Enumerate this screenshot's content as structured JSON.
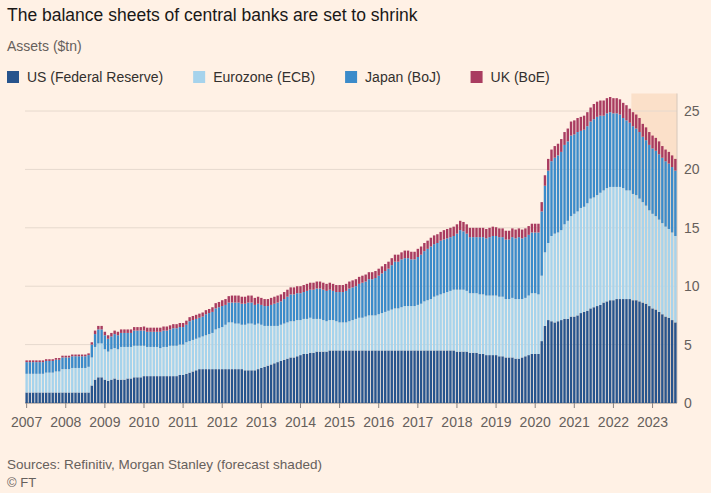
{
  "chart_data": {
    "type": "bar",
    "stacked": true,
    "grid": true,
    "legend": "top",
    "title": "The balance sheets of central banks are set to shrink",
    "subtitle": "Assets ($tn)",
    "source": "Sources: Refinitiv, Morgan Stanley (forecast shaded)",
    "credit": "© FT",
    "forecast_start": 186,
    "ylim": [
      0,
      26.5
    ],
    "yticks": [
      0,
      5,
      10,
      15,
      20,
      25
    ],
    "categories": [
      "2007",
      null,
      null,
      null,
      null,
      null,
      null,
      null,
      null,
      null,
      null,
      null,
      "2008",
      null,
      null,
      null,
      null,
      null,
      null,
      null,
      null,
      null,
      null,
      null,
      "2009",
      null,
      null,
      null,
      null,
      null,
      null,
      null,
      null,
      null,
      null,
      null,
      "2010",
      null,
      null,
      null,
      null,
      null,
      null,
      null,
      null,
      null,
      null,
      null,
      "2011",
      null,
      null,
      null,
      null,
      null,
      null,
      null,
      null,
      null,
      null,
      null,
      "2012",
      null,
      null,
      null,
      null,
      null,
      null,
      null,
      null,
      null,
      null,
      null,
      "2013",
      null,
      null,
      null,
      null,
      null,
      null,
      null,
      null,
      null,
      null,
      null,
      "2014",
      null,
      null,
      null,
      null,
      null,
      null,
      null,
      null,
      null,
      null,
      null,
      "2015",
      null,
      null,
      null,
      null,
      null,
      null,
      null,
      null,
      null,
      null,
      null,
      "2016",
      null,
      null,
      null,
      null,
      null,
      null,
      null,
      null,
      null,
      null,
      null,
      "2017",
      null,
      null,
      null,
      null,
      null,
      null,
      null,
      null,
      null,
      null,
      null,
      "2018",
      null,
      null,
      null,
      null,
      null,
      null,
      null,
      null,
      null,
      null,
      null,
      "2019",
      null,
      null,
      null,
      null,
      null,
      null,
      null,
      null,
      null,
      null,
      null,
      "2020",
      null,
      null,
      null,
      null,
      null,
      null,
      null,
      null,
      null,
      null,
      null,
      "2021",
      null,
      null,
      null,
      null,
      null,
      null,
      null,
      null,
      null,
      null,
      null,
      "2022",
      null,
      null,
      null,
      null,
      null,
      null,
      null,
      null,
      null,
      null,
      null,
      "2023",
      null,
      null,
      null,
      null,
      null,
      null,
      null
    ],
    "series": [
      {
        "name": "US (Federal Reserve)",
        "color": "#27548d",
        "values": [
          0.9,
          0.9,
          0.9,
          0.9,
          0.9,
          0.9,
          0.9,
          0.9,
          0.9,
          0.9,
          0.9,
          0.9,
          0.9,
          0.9,
          0.9,
          0.9,
          0.9,
          0.9,
          0.9,
          0.9,
          1.5,
          2.0,
          2.2,
          2.2,
          2.0,
          1.9,
          2.0,
          2.1,
          2.0,
          2.0,
          2.0,
          2.1,
          2.1,
          2.2,
          2.2,
          2.2,
          2.3,
          2.3,
          2.3,
          2.3,
          2.3,
          2.3,
          2.3,
          2.3,
          2.3,
          2.3,
          2.3,
          2.4,
          2.4,
          2.5,
          2.6,
          2.7,
          2.8,
          2.9,
          2.9,
          2.9,
          2.9,
          2.9,
          2.9,
          2.9,
          2.9,
          2.9,
          2.9,
          2.9,
          2.9,
          2.9,
          2.9,
          2.8,
          2.8,
          2.8,
          2.8,
          2.9,
          3.0,
          3.1,
          3.2,
          3.3,
          3.4,
          3.5,
          3.6,
          3.7,
          3.8,
          3.9,
          3.9,
          4.0,
          4.1,
          4.2,
          4.2,
          4.3,
          4.3,
          4.4,
          4.4,
          4.4,
          4.4,
          4.5,
          4.5,
          4.5,
          4.5,
          4.5,
          4.5,
          4.5,
          4.5,
          4.5,
          4.5,
          4.5,
          4.5,
          4.5,
          4.5,
          4.5,
          4.5,
          4.5,
          4.5,
          4.5,
          4.5,
          4.5,
          4.5,
          4.5,
          4.5,
          4.5,
          4.5,
          4.5,
          4.5,
          4.5,
          4.5,
          4.5,
          4.5,
          4.5,
          4.5,
          4.5,
          4.5,
          4.5,
          4.5,
          4.5,
          4.4,
          4.4,
          4.4,
          4.4,
          4.3,
          4.3,
          4.3,
          4.2,
          4.2,
          4.1,
          4.1,
          4.1,
          4.1,
          4.0,
          4.0,
          3.9,
          3.9,
          3.9,
          3.8,
          3.8,
          3.9,
          4.0,
          4.1,
          4.2,
          4.2,
          4.2,
          5.3,
          6.6,
          7.1,
          7.0,
          6.9,
          7.0,
          7.1,
          7.2,
          7.2,
          7.4,
          7.4,
          7.5,
          7.7,
          7.8,
          7.9,
          8.1,
          8.2,
          8.3,
          8.4,
          8.6,
          8.7,
          8.8,
          8.8,
          8.9,
          8.9,
          8.9,
          8.9,
          8.9,
          8.8,
          8.8,
          8.7,
          8.6,
          8.5,
          8.3,
          8.1,
          8.0,
          7.8,
          7.6,
          7.4,
          7.3,
          7.1,
          6.9
        ]
      },
      {
        "name": "Eurozone (ECB)",
        "color": "#a6d3ec",
        "values": [
          1.6,
          1.6,
          1.6,
          1.6,
          1.6,
          1.6,
          1.7,
          1.7,
          1.7,
          1.8,
          1.8,
          2.0,
          2.0,
          2.0,
          2.1,
          2.1,
          2.1,
          2.1,
          2.1,
          2.2,
          2.4,
          2.8,
          2.9,
          2.9,
          2.6,
          2.5,
          2.6,
          2.6,
          2.6,
          2.8,
          2.8,
          2.7,
          2.7,
          2.7,
          2.7,
          2.7,
          2.6,
          2.5,
          2.5,
          2.5,
          2.5,
          2.4,
          2.5,
          2.5,
          2.6,
          2.6,
          2.6,
          2.6,
          2.6,
          2.7,
          2.7,
          2.7,
          2.7,
          2.7,
          2.8,
          2.9,
          3.0,
          3.1,
          3.4,
          3.5,
          3.6,
          3.8,
          4.0,
          4.0,
          3.9,
          3.9,
          3.8,
          3.9,
          4.0,
          4.0,
          3.9,
          3.9,
          3.7,
          3.5,
          3.4,
          3.3,
          3.2,
          3.1,
          3.1,
          3.1,
          3.1,
          3.1,
          3.1,
          3.1,
          3.0,
          3.0,
          3.0,
          3.0,
          2.9,
          2.8,
          2.8,
          2.7,
          2.6,
          2.6,
          2.6,
          2.5,
          2.4,
          2.4,
          2.4,
          2.5,
          2.6,
          2.7,
          2.8,
          2.8,
          2.9,
          3.0,
          3.0,
          3.0,
          3.1,
          3.2,
          3.3,
          3.4,
          3.5,
          3.6,
          3.6,
          3.7,
          3.8,
          3.8,
          3.8,
          3.8,
          3.9,
          4.0,
          4.2,
          4.3,
          4.4,
          4.6,
          4.7,
          4.8,
          4.9,
          5.0,
          5.1,
          5.2,
          5.3,
          5.3,
          5.3,
          5.2,
          5.1,
          5.1,
          5.1,
          5.1,
          5.1,
          5.1,
          5.1,
          5.1,
          5.1,
          5.1,
          5.1,
          5.0,
          5.0,
          5.1,
          5.1,
          5.1,
          5.0,
          5.0,
          5.1,
          5.2,
          5.2,
          5.1,
          5.6,
          6.3,
          6.6,
          7.3,
          7.6,
          7.6,
          7.7,
          8.1,
          8.4,
          8.6,
          8.8,
          8.9,
          9.0,
          9.0,
          9.2,
          9.4,
          9.4,
          9.5,
          9.6,
          9.6,
          9.7,
          9.7,
          9.7,
          9.6,
          9.6,
          9.5,
          9.3,
          9.3,
          9.1,
          9.0,
          8.8,
          8.6,
          8.4,
          8.2,
          8.1,
          8.0,
          7.9,
          7.8,
          7.7,
          7.6,
          7.5,
          7.4
        ]
      },
      {
        "name": "Japan (BoJ)",
        "color": "#3b8bca",
        "values": [
          1.0,
          1.0,
          1.0,
          1.0,
          1.0,
          1.0,
          1.0,
          1.0,
          1.0,
          1.0,
          1.0,
          1.0,
          1.0,
          1.0,
          1.0,
          1.0,
          1.0,
          1.0,
          1.0,
          1.0,
          1.1,
          1.1,
          1.2,
          1.2,
          1.2,
          1.1,
          1.1,
          1.2,
          1.2,
          1.2,
          1.2,
          1.2,
          1.2,
          1.3,
          1.3,
          1.3,
          1.3,
          1.3,
          1.3,
          1.3,
          1.3,
          1.4,
          1.4,
          1.4,
          1.4,
          1.5,
          1.5,
          1.5,
          1.5,
          1.5,
          1.7,
          1.7,
          1.7,
          1.7,
          1.7,
          1.8,
          1.8,
          1.8,
          1.8,
          1.8,
          1.8,
          1.7,
          1.7,
          1.7,
          1.8,
          1.8,
          1.8,
          1.8,
          1.8,
          1.8,
          1.7,
          1.7,
          1.7,
          1.7,
          1.7,
          1.8,
          1.9,
          2.0,
          2.0,
          2.1,
          2.2,
          2.3,
          2.3,
          2.3,
          2.3,
          2.3,
          2.4,
          2.4,
          2.5,
          2.6,
          2.6,
          2.6,
          2.6,
          2.6,
          2.5,
          2.5,
          2.6,
          2.6,
          2.7,
          2.8,
          2.8,
          2.8,
          2.9,
          3.0,
          3.0,
          3.1,
          3.1,
          3.2,
          3.3,
          3.4,
          3.5,
          3.6,
          3.8,
          4.0,
          4.0,
          4.1,
          4.1,
          4.1,
          4.0,
          4.0,
          4.1,
          4.2,
          4.3,
          4.4,
          4.5,
          4.5,
          4.5,
          4.6,
          4.6,
          4.6,
          4.6,
          4.6,
          4.8,
          5.1,
          5.0,
          4.9,
          4.8,
          4.8,
          4.8,
          4.9,
          4.9,
          4.9,
          5.0,
          5.1,
          5.1,
          5.1,
          5.1,
          5.1,
          5.1,
          5.2,
          5.2,
          5.3,
          5.2,
          5.2,
          5.2,
          5.2,
          5.2,
          5.3,
          5.5,
          5.7,
          6.2,
          6.4,
          6.5,
          6.6,
          6.7,
          6.8,
          6.8,
          6.9,
          6.8,
          6.8,
          6.6,
          6.6,
          6.6,
          6.6,
          6.7,
          6.7,
          6.6,
          6.4,
          6.4,
          6.4,
          6.3,
          6.3,
          6.2,
          6.0,
          6.0,
          5.8,
          5.8,
          5.7,
          5.7,
          5.6,
          5.6,
          5.6,
          5.6,
          5.6,
          5.6,
          5.6,
          5.6,
          5.6,
          5.6,
          5.6
        ]
      },
      {
        "name": "UK (BoE)",
        "color": "#a93c60",
        "values": [
          0.15,
          0.15,
          0.15,
          0.15,
          0.15,
          0.15,
          0.15,
          0.15,
          0.15,
          0.15,
          0.15,
          0.15,
          0.15,
          0.15,
          0.15,
          0.15,
          0.15,
          0.15,
          0.15,
          0.15,
          0.2,
          0.3,
          0.3,
          0.3,
          0.3,
          0.3,
          0.3,
          0.3,
          0.3,
          0.3,
          0.3,
          0.3,
          0.3,
          0.3,
          0.3,
          0.3,
          0.35,
          0.35,
          0.35,
          0.35,
          0.35,
          0.35,
          0.35,
          0.35,
          0.35,
          0.35,
          0.35,
          0.35,
          0.35,
          0.35,
          0.35,
          0.35,
          0.35,
          0.35,
          0.35,
          0.35,
          0.35,
          0.4,
          0.45,
          0.45,
          0.5,
          0.5,
          0.55,
          0.6,
          0.6,
          0.6,
          0.6,
          0.6,
          0.6,
          0.6,
          0.6,
          0.6,
          0.6,
          0.6,
          0.6,
          0.6,
          0.6,
          0.6,
          0.6,
          0.6,
          0.6,
          0.6,
          0.6,
          0.6,
          0.6,
          0.6,
          0.6,
          0.6,
          0.6,
          0.6,
          0.6,
          0.6,
          0.6,
          0.6,
          0.6,
          0.6,
          0.6,
          0.6,
          0.6,
          0.6,
          0.6,
          0.6,
          0.6,
          0.6,
          0.6,
          0.6,
          0.6,
          0.6,
          0.6,
          0.6,
          0.6,
          0.6,
          0.6,
          0.6,
          0.6,
          0.6,
          0.65,
          0.65,
          0.65,
          0.65,
          0.7,
          0.7,
          0.7,
          0.7,
          0.75,
          0.75,
          0.75,
          0.75,
          0.8,
          0.8,
          0.8,
          0.8,
          0.8,
          0.8,
          0.8,
          0.8,
          0.8,
          0.8,
          0.8,
          0.8,
          0.8,
          0.8,
          0.8,
          0.8,
          0.75,
          0.75,
          0.75,
          0.75,
          0.75,
          0.75,
          0.75,
          0.75,
          0.75,
          0.75,
          0.75,
          0.75,
          0.75,
          0.75,
          0.8,
          0.9,
          1.0,
          1.0,
          1.0,
          1.0,
          1.1,
          1.1,
          1.1,
          1.2,
          1.2,
          1.2,
          1.2,
          1.2,
          1.2,
          1.2,
          1.3,
          1.3,
          1.3,
          1.3,
          1.3,
          1.3,
          1.3,
          1.3,
          1.3,
          1.3,
          1.3,
          1.2,
          1.2,
          1.2,
          1.2,
          1.1,
          1.1,
          1.1,
          1.1,
          1.1,
          1.1,
          1.0,
          1.0,
          1.0,
          1.0,
          1.0
        ]
      }
    ]
  }
}
